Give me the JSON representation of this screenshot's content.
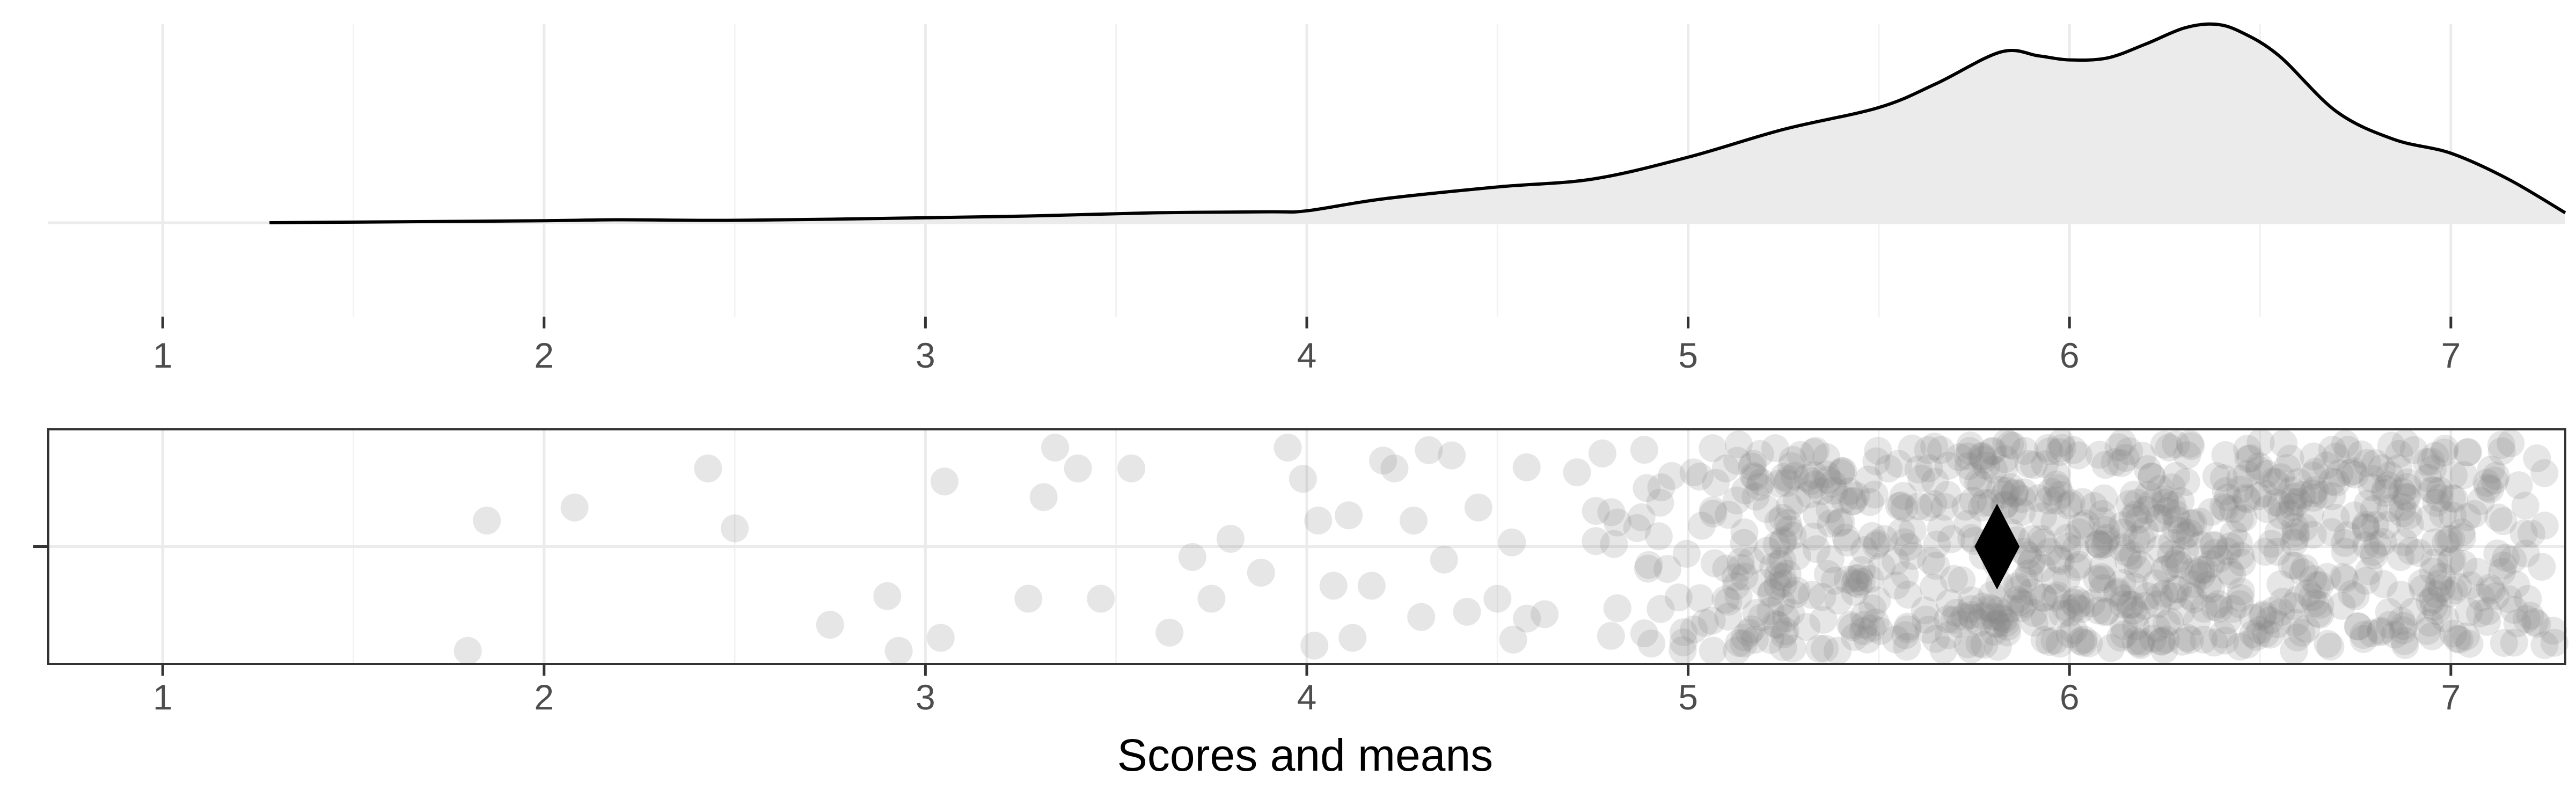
{
  "chart_data": [
    {
      "type": "area",
      "xlim": [
        0.7,
        7.3
      ],
      "x_ticks": [
        1,
        2,
        3,
        4,
        5,
        6,
        7
      ],
      "grid": true,
      "density": {
        "x": [
          1.28,
          1.5,
          2.0,
          2.2,
          2.5,
          3.0,
          3.3,
          3.6,
          3.9,
          4.0,
          4.2,
          4.5,
          4.75,
          5.0,
          5.25,
          5.5,
          5.65,
          5.82,
          5.92,
          6.0,
          6.1,
          6.2,
          6.3,
          6.38,
          6.45,
          6.55,
          6.7,
          6.85,
          7.0,
          7.15,
          7.3
        ],
        "y": [
          0.0,
          0.003,
          0.01,
          0.015,
          0.012,
          0.025,
          0.035,
          0.05,
          0.055,
          0.06,
          0.12,
          0.18,
          0.22,
          0.33,
          0.47,
          0.58,
          0.7,
          0.86,
          0.84,
          0.82,
          0.83,
          0.9,
          0.98,
          1.0,
          0.96,
          0.84,
          0.56,
          0.42,
          0.35,
          0.22,
          0.05
        ]
      }
    },
    {
      "type": "scatter",
      "xlabel": "Scores and means",
      "xlim": [
        0.7,
        7.3
      ],
      "ylim": [
        -0.45,
        0.45
      ],
      "x_ticks": [
        1,
        2,
        3,
        4,
        5,
        6,
        7
      ],
      "grid": true,
      "mean": 5.81,
      "point_count": 900,
      "points": [
        [
          1.8,
          -0.4
        ],
        [
          1.85,
          0.1
        ],
        [
          2.08,
          0.15
        ],
        [
          2.43,
          0.3
        ],
        [
          2.5,
          0.07
        ],
        [
          2.75,
          -0.3
        ],
        [
          2.9,
          -0.19
        ],
        [
          2.93,
          -0.4
        ],
        [
          3.04,
          -0.35
        ],
        [
          3.05,
          0.25
        ],
        [
          3.27,
          -0.2
        ],
        [
          3.31,
          0.19
        ],
        [
          3.34,
          0.38
        ],
        [
          3.4,
          0.3
        ],
        [
          3.46,
          -0.2
        ],
        [
          3.54,
          0.3
        ],
        [
          3.64,
          -0.33
        ],
        [
          3.7,
          -0.04
        ],
        [
          3.75,
          -0.2
        ],
        [
          3.8,
          0.03
        ],
        [
          3.88,
          -0.1
        ],
        [
          3.95,
          0.38
        ],
        [
          3.99,
          0.26
        ],
        [
          4.02,
          -0.38
        ],
        [
          4.03,
          0.1
        ],
        [
          4.07,
          -0.15
        ],
        [
          4.11,
          0.12
        ],
        [
          4.12,
          -0.35
        ],
        [
          4.17,
          -0.15
        ],
        [
          4.2,
          0.33
        ],
        [
          4.23,
          0.3
        ],
        [
          4.28,
          0.1
        ],
        [
          4.3,
          -0.27
        ],
        [
          4.32,
          0.37
        ],
        [
          4.36,
          -0.05
        ],
        [
          4.38,
          0.35
        ],
        [
          4.42,
          -0.25
        ],
        [
          4.45,
          0.15
        ],
        [
          4.5,
          -0.2
        ]
      ]
    }
  ]
}
